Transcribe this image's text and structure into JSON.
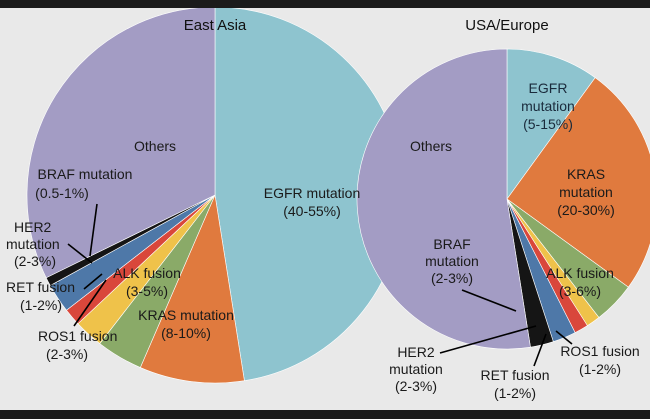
{
  "chart_data": [
    {
      "type": "pie",
      "title": "East Asia",
      "slices": [
        {
          "label": "EGFR mutation",
          "range": "(40-55%)",
          "value": 47.5,
          "color": "#8ec4cf"
        },
        {
          "label": "KRAS mutation",
          "range": "(8-10%)",
          "value": 9,
          "color": "#e07a3e"
        },
        {
          "label": "ALK fusion",
          "range": "(3-5%)",
          "value": 4,
          "color": "#8aaa68"
        },
        {
          "label": "ROS1 fusion",
          "range": "(2-3%)",
          "value": 2.5,
          "color": "#efc24a"
        },
        {
          "label": "RET fusion",
          "range": "(1-2%)",
          "value": 1.5,
          "color": "#d9473b"
        },
        {
          "label": "HER2 mutation",
          "range": "(2-3%)",
          "value": 2.5,
          "color": "#4e78a8"
        },
        {
          "label": "BRAF mutation",
          "range": "(0.5-1%)",
          "value": 0.75,
          "color": "#151515"
        },
        {
          "label": "Others",
          "range": "",
          "value": 32.25,
          "color": "#a39cc4"
        }
      ]
    },
    {
      "type": "pie",
      "title": "USA/Europe",
      "slices": [
        {
          "label": "EGFR mutation",
          "range": "(5-15%)",
          "value": 10,
          "color": "#8ec4cf"
        },
        {
          "label": "KRAS mutation",
          "range": "(20-30%)",
          "value": 25,
          "color": "#e07a3e"
        },
        {
          "label": "ALK fusion",
          "range": "(3-6%)",
          "value": 4.5,
          "color": "#8aaa68"
        },
        {
          "label": "ROS1 fusion",
          "range": "(1-2%)",
          "value": 1.5,
          "color": "#efc24a"
        },
        {
          "label": "RET fusion",
          "range": "(1-2%)",
          "value": 1.5,
          "color": "#d9473b"
        },
        {
          "label": "HER2 mutation",
          "range": "(2-3%)",
          "value": 2.5,
          "color": "#4e78a8"
        },
        {
          "label": "BRAF mutation",
          "range": "(2-3%)",
          "value": 2.5,
          "color": "#151515"
        },
        {
          "label": "Others",
          "range": "",
          "value": 52.5,
          "color": "#a39cc4"
        }
      ]
    }
  ]
}
